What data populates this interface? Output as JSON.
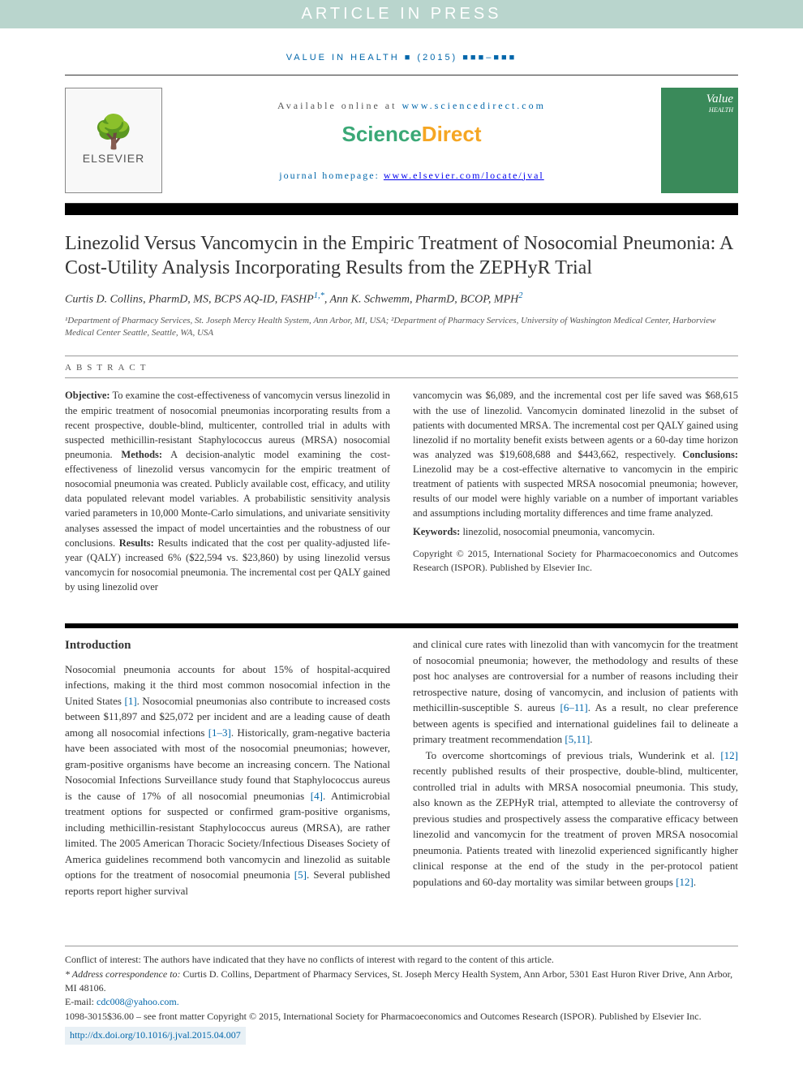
{
  "banner": {
    "text": "ARTICLE IN PRESS"
  },
  "journal_ref": "VALUE IN HEALTH ■ (2015) ■■■–■■■",
  "header": {
    "available_text": "Available online at ",
    "available_link": "www.sciencedirect.com",
    "sciencedirect": {
      "sci": "Science",
      "dir": "Direct"
    },
    "homepage_label": "journal homepage: ",
    "homepage_link": "www.elsevier.com/locate/jval",
    "elsevier_name": "ELSEVIER",
    "cover_title": "Value",
    "cover_sub": "HEALTH"
  },
  "article": {
    "title": "Linezolid Versus Vancomycin in the Empiric Treatment of Nosocomial Pneumonia: A Cost-Utility Analysis Incorporating Results from the ZEPHyR Trial",
    "authors_html": "Curtis D. Collins, PharmD, MS, BCPS AQ-ID, FASHP",
    "author1_sup": "1,*",
    "author2": ", Ann K. Schwemm, PharmD, BCOP, MPH",
    "author2_sup": "2",
    "affiliations": "¹Department of Pharmacy Services, St. Joseph Mercy Health System, Ann Arbor, MI, USA; ²Department of Pharmacy Services, University of Washington Medical Center, Harborview Medical Center Seattle, Seattle, WA, USA"
  },
  "abstract": {
    "label": "ABSTRACT",
    "col1": {
      "obj_label": "Objective:",
      "obj": " To examine the cost-effectiveness of vancomycin versus linezolid in the empiric treatment of nosocomial pneumonias incorporating results from a recent prospective, double-blind, multicenter, controlled trial in adults with suspected methicillin-resistant Staphylococcus aureus (MRSA) nosocomial pneumonia. ",
      "meth_label": "Methods:",
      "meth": " A decision-analytic model examining the cost-effectiveness of linezolid versus vancomycin for the empiric treatment of nosocomial pneumonia was created. Publicly available cost, efficacy, and utility data populated relevant model variables. A probabilistic sensitivity analysis varied parameters in 10,000 Monte-Carlo simulations, and univariate sensitivity analyses assessed the impact of model uncertainties and the robustness of our conclusions. ",
      "res_label": "Results:",
      "res": " Results indicated that the cost per quality-adjusted life-year (QALY) increased 6% ($22,594 vs. $23,860) by using linezolid versus vancomycin for nosocomial pneumonia. The incremental cost per QALY gained by using linezolid over"
    },
    "col2": {
      "res2": "vancomycin was $6,089, and the incremental cost per life saved was $68,615 with the use of linezolid. Vancomycin dominated linezolid in the subset of patients with documented MRSA. The incremental cost per QALY gained using linezolid if no mortality benefit exists between agents or a 60-day time horizon was analyzed was $19,608,688 and $443,662, respectively. ",
      "con_label": "Conclusions:",
      "con": " Linezolid may be a cost-effective alternative to vancomycin in the empiric treatment of patients with suspected MRSA nosocomial pneumonia; however, results of our model were highly variable on a number of important variables and assumptions including mortality differences and time frame analyzed.",
      "kw_label": "Keywords:",
      "kw": " linezolid, nosocomial pneumonia, vancomycin.",
      "copyright": "Copyright © 2015, International Society for Pharmacoeconomics and Outcomes Research (ISPOR). Published by Elsevier Inc."
    }
  },
  "intro": {
    "heading": "Introduction",
    "col1_p1a": "Nosocomial pneumonia accounts for about 15% of hospital-acquired infections, making it the third most common nosocomial infection in the United States ",
    "ref1": "[1]",
    "col1_p1b": ". Nosocomial pneumonias also contribute to increased costs between $11,897 and $25,072 per incident and are a leading cause of death among all nosocomial infections ",
    "ref1_3": "[1–3]",
    "col1_p1c": ". Historically, gram-negative bacteria have been associated with most of the nosocomial pneumonias; however, gram-positive organisms have become an increasing concern. The National Nosocomial Infections Surveillance study found that Staphylococcus aureus is the cause of 17% of all nosocomial pneumonias ",
    "ref4": "[4]",
    "col1_p1d": ". Antimicrobial treatment options for suspected or confirmed gram-positive organisms, including methicillin-resistant Staphylococcus aureus (MRSA), are rather limited. The 2005 American Thoracic Society/Infectious Diseases Society of America guidelines recommend both vancomycin and linezolid as suitable options for the treatment of nosocomial pneumonia ",
    "ref5": "[5]",
    "col1_p1e": ". Several published reports report higher survival",
    "col2_p1a": "and clinical cure rates with linezolid than with vancomycin for the treatment of nosocomial pneumonia; however, the methodology and results of these post hoc analyses are controversial for a number of reasons including their retrospective nature, dosing of vancomycin, and inclusion of patients with methicillin-susceptible S. aureus ",
    "ref6_11": "[6–11]",
    "col2_p1b": ". As a result, no clear preference between agents is specified and international guidelines fail to delineate a primary treatment recommendation ",
    "ref5_11": "[5,11]",
    "col2_p1c": ".",
    "col2_p2a": "To overcome shortcomings of previous trials, Wunderink et al. ",
    "ref12": "[12]",
    "col2_p2b": " recently published results of their prospective, double-blind, multicenter, controlled trial in adults with MRSA nosocomial pneumonia. This study, also known as the ZEPHyR trial, attempted to alleviate the controversy of previous studies and prospectively assess the comparative efficacy between linezolid and vancomycin for the treatment of proven MRSA nosocomial pneumonia. Patients treated with linezolid experienced significantly higher clinical response at the end of the study in the per-protocol patient populations and 60-day mortality was similar between groups ",
    "ref12b": "[12]",
    "col2_p2c": "."
  },
  "footer": {
    "conflict": "Conflict of interest: The authors have indicated that they have no conflicts of interest with regard to the content of this article.",
    "corr_label": "* Address correspondence to:",
    "corr": " Curtis D. Collins, Department of Pharmacy Services, St. Joseph Mercy Health System, Ann Arbor, 5301 East Huron River Drive, Ann Arbor, MI 48106.",
    "email_label": "E-mail: ",
    "email": "cdc008@yahoo.com.",
    "issn": "1098-3015$36.00 – see front matter Copyright © 2015, International Society for Pharmacoeconomics and Outcomes Research (ISPOR). Published by Elsevier Inc.",
    "doi": "http://dx.doi.org/10.1016/j.jval.2015.04.007"
  },
  "colors": {
    "banner_bg": "#b9d5cd",
    "link": "#0066aa",
    "sci": "#3aa876",
    "dir": "#f5a623",
    "cover": "#3a8a5a"
  }
}
